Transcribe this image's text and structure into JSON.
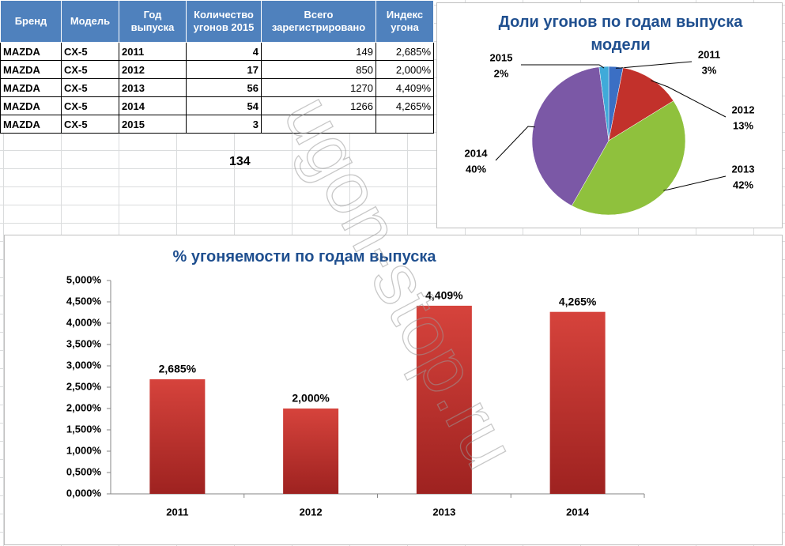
{
  "table": {
    "headers": [
      "Бренд",
      "Модель",
      "Год выпуска",
      "Количество угонов 2015",
      "Всего зарегистрировано",
      "Индекс угона"
    ],
    "rows": [
      [
        "MAZDA",
        "CX-5",
        "2011",
        "4",
        "149",
        "2,685%"
      ],
      [
        "MAZDA",
        "CX-5",
        "2012",
        "17",
        "850",
        "2,000%"
      ],
      [
        "MAZDA",
        "CX-5",
        "2013",
        "56",
        "1270",
        "4,409%"
      ],
      [
        "MAZDA",
        "CX-5",
        "2014",
        "54",
        "1266",
        "4,265%"
      ],
      [
        "MAZDA",
        "CX-5",
        "2015",
        "3"
      ]
    ],
    "total": "134"
  },
  "watermark": "ugon-stop.ru",
  "chart_data": [
    {
      "type": "pie",
      "title": "Доли угонов  по годам  выпуска модели",
      "categories": [
        "2011",
        "2012",
        "2013",
        "2014",
        "2015"
      ],
      "values": [
        3,
        13,
        42,
        40,
        2
      ],
      "value_labels": [
        "3%",
        "13%",
        "42%",
        "40%",
        "2%"
      ],
      "colors": [
        "#3b6fc4",
        "#c2312b",
        "#8fc13d",
        "#7b58a6",
        "#40aad9"
      ]
    },
    {
      "type": "bar",
      "title": "% угоняемости  по годам  выпуска",
      "categories": [
        "2011",
        "2012",
        "2013",
        "2014"
      ],
      "values": [
        2.685,
        2.0,
        4.409,
        4.265
      ],
      "value_labels": [
        "2,685%",
        "2,000%",
        "4,409%",
        "4,265%"
      ],
      "color": "#c0312c",
      "ylim": [
        0,
        5
      ],
      "yticks": [
        {
          "value": 0,
          "label": "0,000%"
        },
        {
          "value": 0.5,
          "label": "0,500%"
        },
        {
          "value": 1,
          "label": "1,000%"
        },
        {
          "value": 1.5,
          "label": "1,500%"
        },
        {
          "value": 2,
          "label": "2,000%"
        },
        {
          "value": 2.5,
          "label": "2,500%"
        },
        {
          "value": 3,
          "label": "3,000%"
        },
        {
          "value": 3.5,
          "label": "3,500%"
        },
        {
          "value": 4,
          "label": "4,000%"
        },
        {
          "value": 4.5,
          "label": "4,500%"
        },
        {
          "value": 5,
          "label": "5,000%"
        }
      ],
      "grid": false
    }
  ]
}
